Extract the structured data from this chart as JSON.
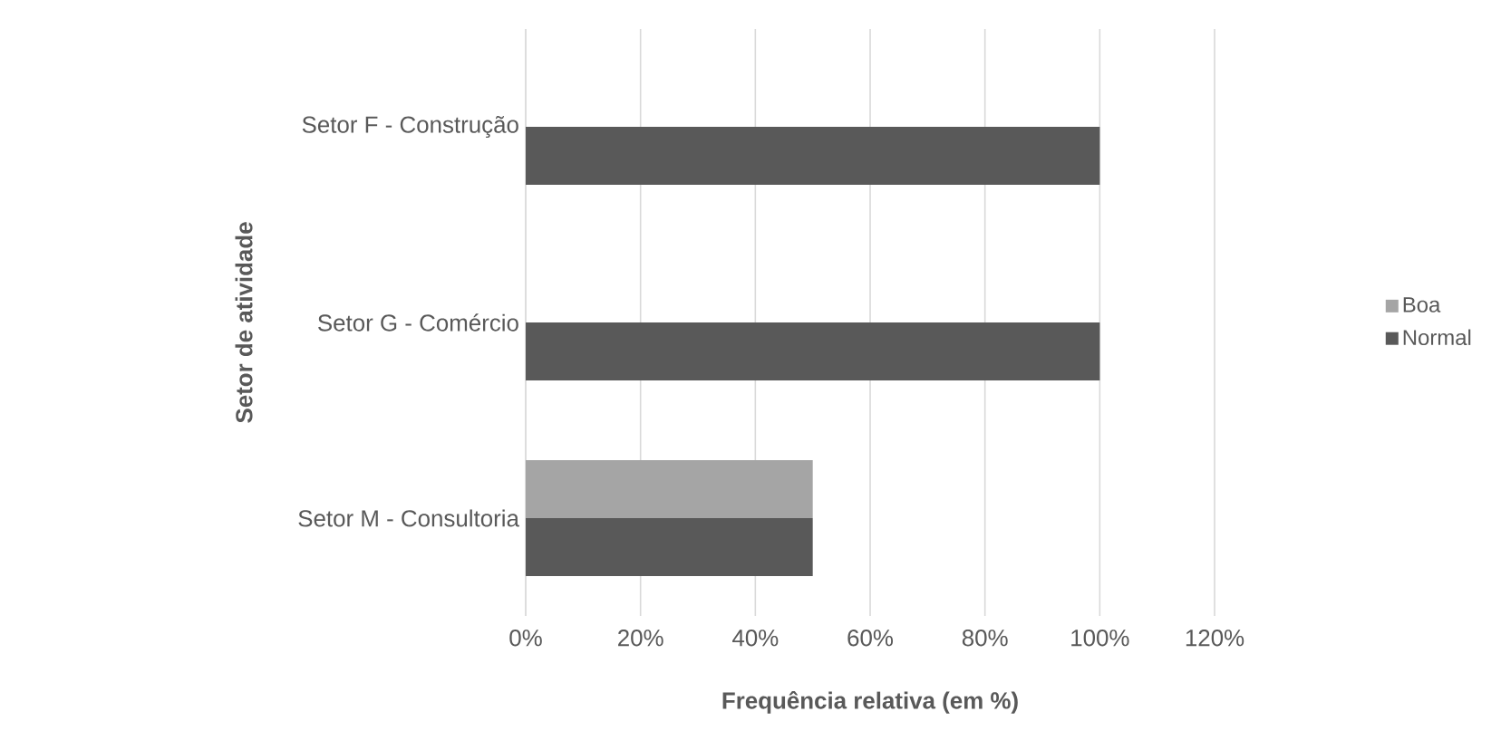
{
  "chart_data": {
    "type": "bar",
    "orientation": "horizontal",
    "categories": [
      "Setor F - Construção",
      "Setor G - Comércio",
      "Setor M - Consultoria"
    ],
    "series": [
      {
        "name": "Boa",
        "color": "#a5a5a5",
        "values": [
          null,
          null,
          50
        ]
      },
      {
        "name": "Normal",
        "color": "#595959",
        "values": [
          100,
          100,
          50
        ]
      }
    ],
    "xlim": [
      0,
      120
    ],
    "xticks": [
      {
        "value": 0,
        "label": "0%"
      },
      {
        "value": 20,
        "label": "20%"
      },
      {
        "value": 40,
        "label": "40%"
      },
      {
        "value": 60,
        "label": "60%"
      },
      {
        "value": 80,
        "label": "80%"
      },
      {
        "value": 100,
        "label": "100%"
      },
      {
        "value": 120,
        "label": "120%"
      }
    ],
    "grid": "x",
    "legend": "right",
    "xlabel": "Frequência relativa (em %)",
    "ylabel": "Setor de atividade"
  }
}
